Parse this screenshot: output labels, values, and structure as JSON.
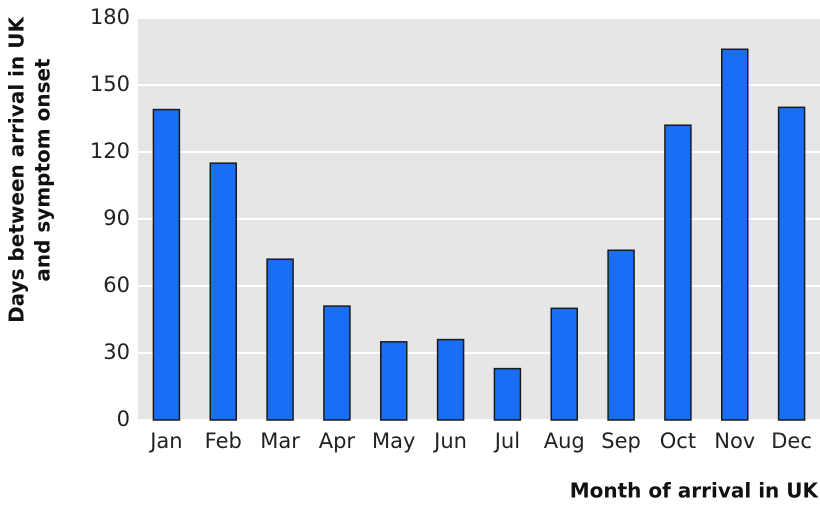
{
  "chart_data": {
    "type": "bar",
    "y_label": [
      "Days between arrival in UK",
      "and symptom onset"
    ],
    "x_label": "Month of arrival in UK",
    "categories": [
      "Jan",
      "Feb",
      "Mar",
      "Apr",
      "May",
      "Jun",
      "Jul",
      "Aug",
      "Sep",
      "Oct",
      "Nov",
      "Dec"
    ],
    "values": [
      139,
      115,
      72,
      51,
      35,
      36,
      23,
      50,
      76,
      132,
      166,
      140
    ],
    "color": "#1a6ef5",
    "ylim": [
      0,
      180
    ],
    "yticks": [
      0,
      30,
      60,
      90,
      120,
      150,
      180
    ],
    "grid": true
  }
}
